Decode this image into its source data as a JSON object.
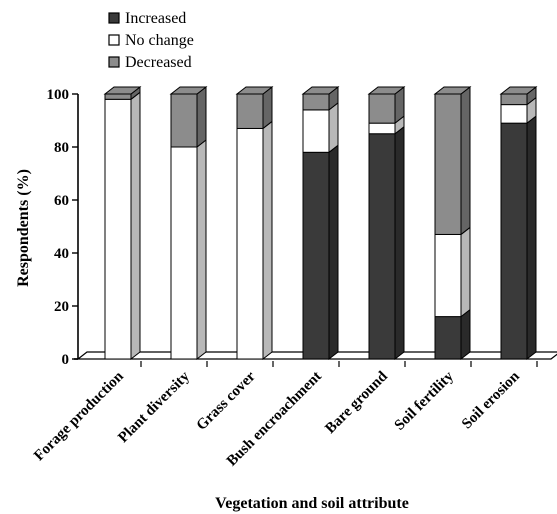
{
  "chart_data": {
    "type": "bar",
    "stacked": true,
    "three_d": true,
    "title": "",
    "xlabel": "Vegetation and soil attribute",
    "ylabel": "Respondents (%)",
    "ylim": [
      0,
      100
    ],
    "yticks": [
      0,
      20,
      40,
      60,
      80,
      100
    ],
    "grid": false,
    "legend_position": "top-left",
    "categories": [
      "Forage production",
      "Plant diversity",
      "Grass cover",
      "Bush encroachment",
      "Bare ground",
      "Soil fertility",
      "Soil erosion"
    ],
    "series": [
      {
        "name": "Increased",
        "color": "#3a3a3a",
        "values": [
          0,
          0,
          0,
          78,
          85,
          16,
          89
        ]
      },
      {
        "name": "No change",
        "color": "#ffffff",
        "values": [
          98,
          80,
          87,
          16,
          4,
          31,
          7
        ]
      },
      {
        "name": "Decreased",
        "color": "#8c8c8c",
        "values": [
          2,
          20,
          13,
          6,
          11,
          53,
          4
        ]
      }
    ]
  }
}
